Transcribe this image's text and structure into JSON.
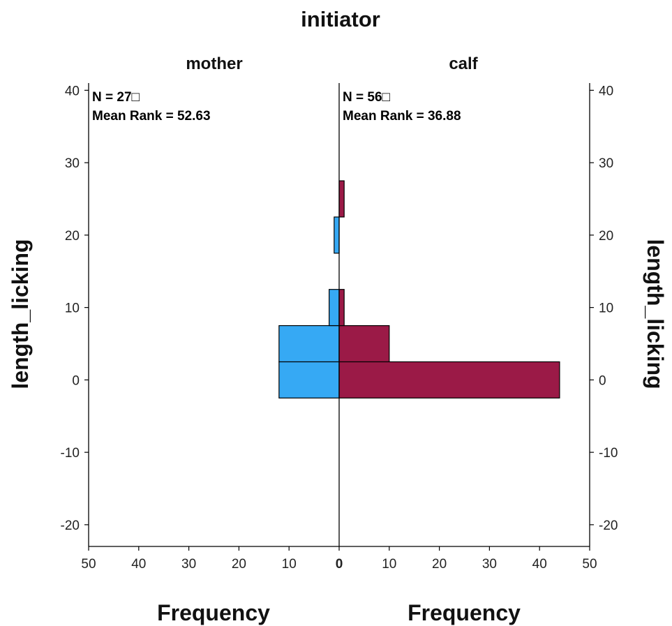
{
  "chart_data": {
    "type": "bar",
    "subtype": "back-to-back-histogram",
    "title": "initiator",
    "ylabel": "length_licking",
    "xlabel": "Frequency",
    "ylim": [
      -23,
      41
    ],
    "xlim": [
      0,
      50
    ],
    "y_ticks": [
      -20,
      -10,
      0,
      10,
      20,
      30,
      40
    ],
    "x_ticks": [
      50,
      40,
      30,
      20,
      10,
      0,
      10,
      20,
      30,
      40,
      50
    ],
    "grid": false,
    "colors": {
      "mother": "#36a9f4",
      "calf": "#9b1a47"
    },
    "groups": [
      {
        "name": "mother",
        "side": "left",
        "n_label": "N = 27□",
        "mean_rank_label": "Mean Rank = 52.63",
        "bins": [
          {
            "from": -2.5,
            "to": 2.5,
            "frequency": 12
          },
          {
            "from": 2.5,
            "to": 7.5,
            "frequency": 12
          },
          {
            "from": 7.5,
            "to": 12.5,
            "frequency": 2
          },
          {
            "from": 12.5,
            "to": 17.5,
            "frequency": 0
          },
          {
            "from": 17.5,
            "to": 22.5,
            "frequency": 1
          },
          {
            "from": 22.5,
            "to": 27.5,
            "frequency": 0
          }
        ]
      },
      {
        "name": "calf",
        "side": "right",
        "n_label": "N = 56□",
        "mean_rank_label": "Mean Rank = 36.88",
        "bins": [
          {
            "from": -2.5,
            "to": 2.5,
            "frequency": 44
          },
          {
            "from": 2.5,
            "to": 7.5,
            "frequency": 10
          },
          {
            "from": 7.5,
            "to": 12.5,
            "frequency": 1
          },
          {
            "from": 12.5,
            "to": 17.5,
            "frequency": 0
          },
          {
            "from": 17.5,
            "to": 22.5,
            "frequency": 0
          },
          {
            "from": 22.5,
            "to": 27.5,
            "frequency": 1
          }
        ]
      }
    ]
  }
}
